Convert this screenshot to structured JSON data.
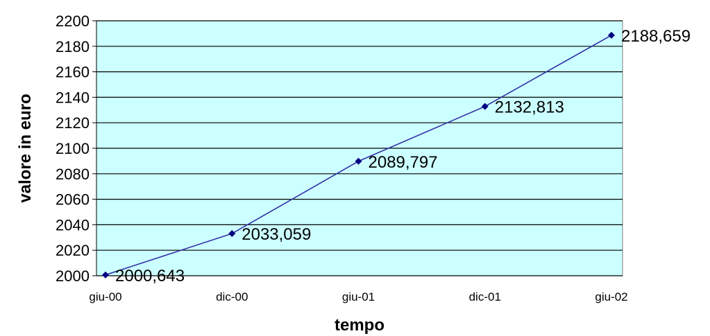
{
  "chart_data": {
    "type": "line",
    "title": "",
    "xlabel": "tempo",
    "ylabel": "valore in euro",
    "categories": [
      "giu-00",
      "dic-00",
      "giu-01",
      "dic-01",
      "giu-02"
    ],
    "series": [
      {
        "values": [
          2000.643,
          2033.059,
          2089.797,
          2132.813,
          2188.659
        ],
        "labels": [
          "2000,643",
          "2033,059",
          "2089,797",
          "2132,813",
          "2188,659"
        ]
      }
    ],
    "ylim": [
      2000,
      2200
    ],
    "yticks": [
      "2000",
      "2020",
      "2040",
      "2060",
      "2080",
      "2100",
      "2120",
      "2140",
      "2160",
      "2180",
      "2200"
    ],
    "grid": "horizontal",
    "legend": "none",
    "colors": {
      "plot_background": "#ccffff",
      "line": "#3333aa",
      "marker": "#000080",
      "gridline": "#000000"
    }
  }
}
